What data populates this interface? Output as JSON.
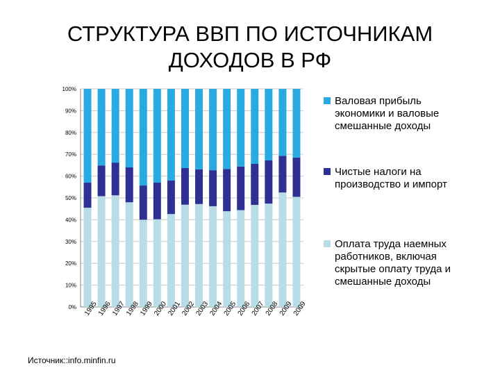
{
  "title_lines": [
    "СТРУКТУРА ВВП ПО ИСТОЧНИКАМ",
    "ДОХОДОВ В РФ"
  ],
  "source": "Источник::info.minfin.ru",
  "colors": {
    "wages": "#b8dde6",
    "taxes": "#2e3192",
    "profit": "#29abe2",
    "grid": "#c8c8c8",
    "axis": "#808080"
  },
  "chart_data": {
    "type": "bar",
    "stacked": true,
    "percent": true,
    "categories": [
      "1995",
      "1996",
      "1997",
      "1998",
      "1999",
      "2000",
      "2001",
      "2002",
      "2003",
      "2004",
      "2005",
      "2006",
      "2007",
      "2008",
      "2009",
      "2009"
    ],
    "series": [
      {
        "name": "Оплата труда наемных работников, включая скрытые оплату труда и смешанные доходы",
        "color_key": "wages",
        "values": [
          45.5,
          50.8,
          51.2,
          48.0,
          40.0,
          40.2,
          42.6,
          46.9,
          47.2,
          46.2,
          43.9,
          44.4,
          46.8,
          47.4,
          52.5,
          50.5
        ]
      },
      {
        "name": "Чистые налоги на производство и импорт",
        "color_key": "taxes",
        "values": [
          11.5,
          14.1,
          15.0,
          16.0,
          15.7,
          16.8,
          15.4,
          16.8,
          15.9,
          16.5,
          19.4,
          20.0,
          18.8,
          19.8,
          16.8,
          18.0
        ]
      },
      {
        "name": "Валовая прибыль экономики и валовые смешанные доходы",
        "color_key": "profit",
        "values": [
          43.0,
          35.1,
          33.8,
          36.0,
          44.3,
          43.0,
          42.0,
          36.3,
          36.9,
          37.3,
          36.7,
          35.6,
          34.4,
          32.8,
          30.7,
          31.5
        ]
      }
    ],
    "yticks": [
      "0%",
      "10%",
      "20%",
      "30%",
      "40%",
      "50%",
      "60%",
      "70%",
      "80%",
      "90%",
      "100%"
    ],
    "ylim": [
      0,
      100
    ],
    "grid": true,
    "legend_position": "right"
  }
}
